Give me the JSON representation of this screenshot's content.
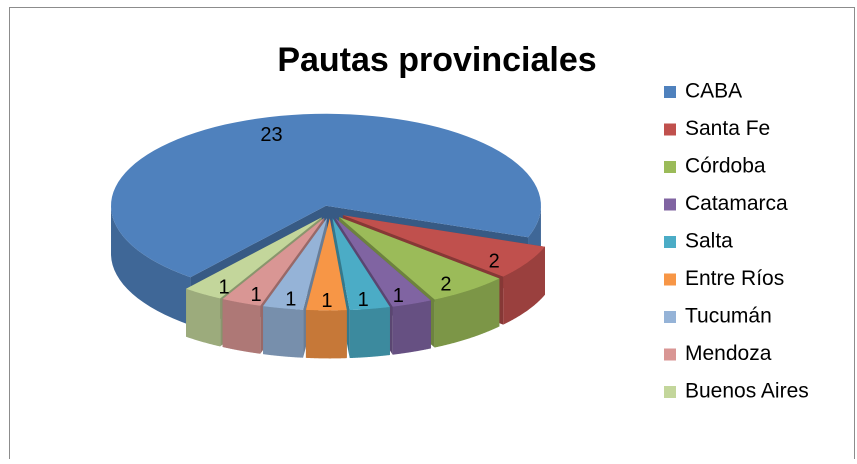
{
  "chart_data": {
    "type": "pie",
    "title": "Pautas provinciales",
    "categories": [
      "CABA",
      "Santa Fe",
      "Córdoba",
      "Catamarca",
      "Salta",
      "Entre Ríos",
      "Tucumán",
      "Mendoza",
      "Buenos Aires"
    ],
    "values": [
      23,
      2,
      2,
      1,
      1,
      1,
      1,
      1,
      1
    ],
    "colors": [
      "#4F81BD",
      "#C0504D",
      "#9BBB59",
      "#8064A2",
      "#4BACC6",
      "#F79646",
      "#95B3D7",
      "#D99694",
      "#C3D69B"
    ],
    "legend": "right"
  }
}
